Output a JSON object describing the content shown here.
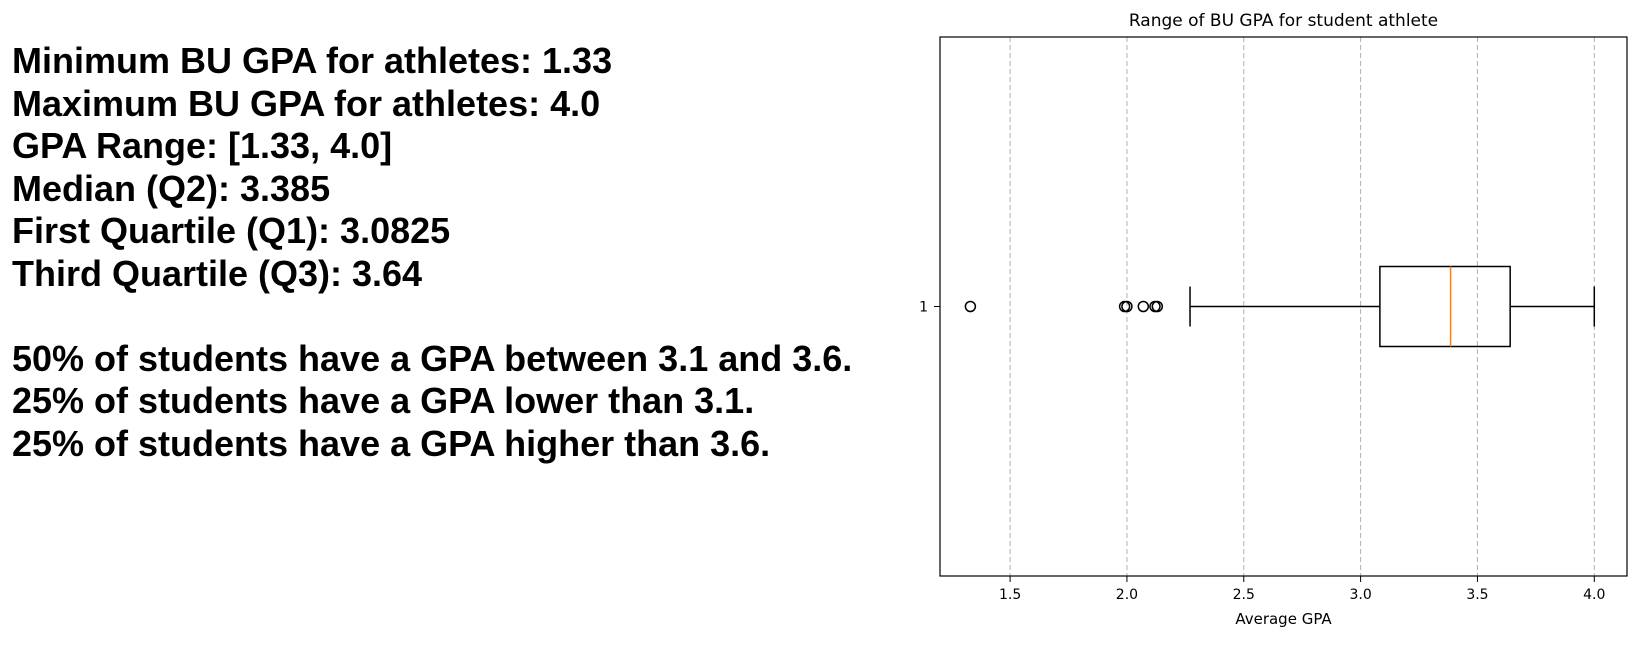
{
  "summary": {
    "lines": [
      "Minimum BU GPA for athletes: 1.33",
      "Maximum BU GPA for athletes: 4.0",
      "GPA Range: [1.33, 4.0]",
      "Median (Q2): 3.385",
      "First Quartile (Q1): 3.0825",
      "Third Quartile (Q3): 3.64"
    ],
    "notes": [
      "50% of students have a GPA between 3.1 and 3.6.",
      "25% of students have a GPA lower than 3.1.",
      "25% of students have a GPA higher than 3.6."
    ]
  },
  "chart_data": {
    "type": "boxplot",
    "orientation": "horizontal",
    "title": "Range of BU GPA for student athlete",
    "xlabel": "Average GPA",
    "ylabel": "",
    "xlim": [
      1.2,
      4.14
    ],
    "xticks": [
      1.5,
      2.0,
      2.5,
      3.0,
      3.5,
      4.0
    ],
    "xtick_labels": [
      "1.5",
      "2.0",
      "2.5",
      "3.0",
      "3.5",
      "4.0"
    ],
    "grid": "x-dashed",
    "boxes": [
      {
        "label": "1",
        "whisker_low": 2.27,
        "q1": 3.0825,
        "median": 3.385,
        "q3": 3.64,
        "whisker_high": 4.0,
        "outliers": [
          1.33,
          1.99,
          2.0,
          2.07,
          2.12,
          2.13
        ]
      }
    ],
    "colors": {
      "box": "#000000",
      "median": "#ff7f0e",
      "grid": "#b0b0b0"
    }
  }
}
